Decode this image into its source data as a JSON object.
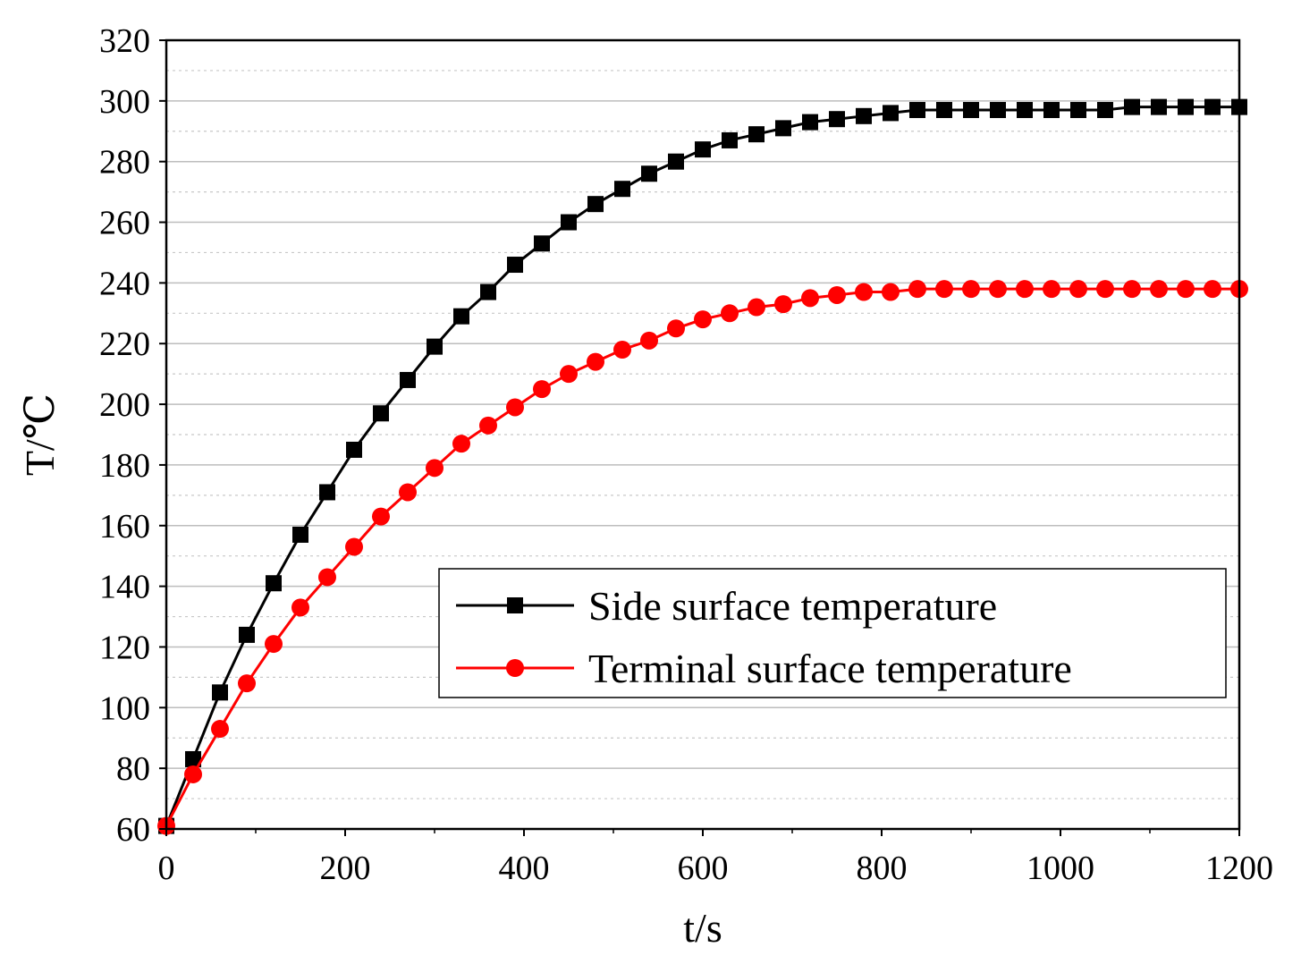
{
  "chart_data": {
    "type": "line",
    "title": "",
    "xlabel": "t/s",
    "ylabel": "T/℃",
    "xlim": [
      0,
      1200
    ],
    "ylim": [
      60,
      320
    ],
    "xticks": [
      "0",
      "200",
      "400",
      "600",
      "800",
      "1000",
      "1200"
    ],
    "yticks": [
      "60",
      "80",
      "100",
      "120",
      "140",
      "160",
      "180",
      "200",
      "220",
      "240",
      "260",
      "280",
      "300",
      "320"
    ],
    "grid": true,
    "legend_position": "lower-right",
    "series": [
      {
        "name": "Side surface temperature",
        "color": "#000000",
        "marker": "square",
        "x": [
          0,
          30,
          60,
          90,
          120,
          150,
          180,
          210,
          240,
          270,
          300,
          330,
          360,
          390,
          420,
          450,
          480,
          510,
          540,
          570,
          600,
          630,
          660,
          690,
          720,
          750,
          780,
          810,
          840,
          870,
          900,
          930,
          960,
          990,
          1020,
          1050,
          1080,
          1110,
          1140,
          1170,
          1200
        ],
        "values": [
          61,
          83,
          105,
          124,
          141,
          157,
          171,
          185,
          197,
          208,
          219,
          229,
          237,
          246,
          253,
          260,
          266,
          271,
          276,
          280,
          284,
          287,
          289,
          291,
          293,
          294,
          295,
          296,
          297,
          297,
          297,
          297,
          297,
          297,
          297,
          297,
          298,
          298,
          298,
          298,
          298
        ]
      },
      {
        "name": "Terminal surface temperature",
        "color": "#ff0000",
        "marker": "circle",
        "x": [
          0,
          30,
          60,
          90,
          120,
          150,
          180,
          210,
          240,
          270,
          300,
          330,
          360,
          390,
          420,
          450,
          480,
          510,
          540,
          570,
          600,
          630,
          660,
          690,
          720,
          750,
          780,
          810,
          840,
          870,
          900,
          930,
          960,
          990,
          1020,
          1050,
          1080,
          1110,
          1140,
          1170,
          1200
        ],
        "values": [
          61,
          78,
          93,
          108,
          121,
          133,
          143,
          153,
          163,
          171,
          179,
          187,
          193,
          199,
          205,
          210,
          214,
          218,
          221,
          225,
          228,
          230,
          232,
          233,
          235,
          236,
          237,
          237,
          238,
          238,
          238,
          238,
          238,
          238,
          238,
          238,
          238,
          238,
          238,
          238,
          238
        ]
      }
    ]
  }
}
